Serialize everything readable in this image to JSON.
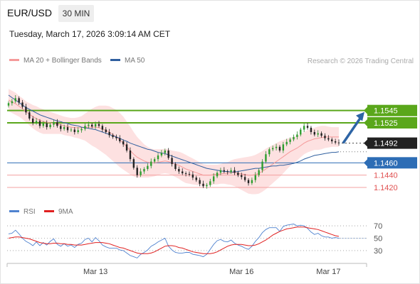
{
  "header": {
    "pair": "EUR/USD",
    "timeframe": "30 MIN",
    "datetime": "Tuesday, March 17, 2026 3:09:14 AM CET",
    "credit": "Research © 2026 Trading Central"
  },
  "colors": {
    "ma20": "#f59a9a",
    "ma50": "#2f5f9f",
    "resistance": "#5aa71b",
    "support": "#2d6db5",
    "support_light": "#f3a0a0",
    "arrow": "#2d64a5",
    "rsi": "#4f82cf",
    "rsi_ma": "#e02020"
  },
  "chart_data": [
    {
      "type": "candlestick",
      "title": "",
      "legend": [
        "MA 20 + Bollinger Bands",
        "MA 50"
      ],
      "x_ticks": [
        "Mar 13",
        "Mar 16",
        "Mar 17"
      ],
      "ylim": [
        1.1405,
        1.1615
      ],
      "levels": [
        {
          "label": "1.1545",
          "value": 1.1545,
          "kind": "resistance"
        },
        {
          "label": "1.1525",
          "value": 1.1525,
          "kind": "resistance"
        },
        {
          "label": "1.1492",
          "value": 1.1492,
          "kind": "last"
        },
        {
          "label": "1.1460",
          "value": 1.146,
          "kind": "support"
        },
        {
          "label": "1.1440",
          "value": 1.144,
          "kind": "support_light"
        },
        {
          "label": "1.1420",
          "value": 1.142,
          "kind": "support_light"
        }
      ],
      "close": [
        1.1557,
        1.156,
        1.1565,
        1.1558,
        1.1551,
        1.1542,
        1.1532,
        1.1525,
        1.1528,
        1.152,
        1.1524,
        1.1518,
        1.1522,
        1.1526,
        1.152,
        1.1515,
        1.1518,
        1.1513,
        1.1514,
        1.151,
        1.1513,
        1.1515,
        1.152,
        1.1522,
        1.1519,
        1.1523,
        1.152,
        1.1514,
        1.151,
        1.1505,
        1.1502,
        1.15,
        1.1495,
        1.149,
        1.148,
        1.1466,
        1.1452,
        1.144,
        1.1446,
        1.145,
        1.1455,
        1.1462,
        1.1466,
        1.1472,
        1.1476,
        1.148,
        1.1468,
        1.1458,
        1.145,
        1.1446,
        1.1443,
        1.1442,
        1.1441,
        1.1436,
        1.1432,
        1.1426,
        1.1422,
        1.1424,
        1.143,
        1.1438,
        1.1444,
        1.1448,
        1.1446,
        1.1445,
        1.1448,
        1.1444,
        1.144,
        1.1437,
        1.1432,
        1.1427,
        1.1432,
        1.144,
        1.1448,
        1.1462,
        1.1474,
        1.1482,
        1.1484,
        1.1486,
        1.148,
        1.149,
        1.1494,
        1.1498,
        1.1502,
        1.1506,
        1.1514,
        1.152,
        1.1517,
        1.151,
        1.1506,
        1.1508,
        1.1504,
        1.15,
        1.1498,
        1.1495,
        1.1493,
        1.1492
      ],
      "ma20": [
        1.1562,
        1.1559,
        1.1556,
        1.1552,
        1.1548,
        1.1543,
        1.1539,
        1.1535,
        1.1532,
        1.1529,
        1.1527,
        1.1526,
        1.1525,
        1.1524,
        1.1523,
        1.1522,
        1.152,
        1.1519,
        1.1518,
        1.1517,
        1.1517,
        1.1517,
        1.1518,
        1.1518,
        1.1518,
        1.1518,
        1.1517,
        1.1515,
        1.1513,
        1.151,
        1.1506,
        1.1502,
        1.1497,
        1.1492,
        1.1486,
        1.148,
        1.1474,
        1.1469,
        1.1466,
        1.1463,
        1.1461,
        1.146,
        1.146,
        1.1461,
        1.1462,
        1.1463,
        1.1462,
        1.146,
        1.1458,
        1.1456,
        1.1453,
        1.145,
        1.1448,
        1.1446,
        1.1444,
        1.1442,
        1.144,
        1.144,
        1.144,
        1.1441,
        1.1441,
        1.1442,
        1.1443,
        1.1443,
        1.1444,
        1.1444,
        1.1443,
        1.1442,
        1.1441,
        1.144,
        1.144,
        1.1441,
        1.1443,
        1.1446,
        1.145,
        1.1454,
        1.1458,
        1.1462,
        1.1466,
        1.147,
        1.1474,
        1.1478,
        1.1481,
        1.1484,
        1.1488,
        1.1492,
        1.1495,
        1.1497,
        1.1499,
        1.15,
        1.1501,
        1.1502,
        1.1502,
        1.1502,
        1.1502,
        1.1502
      ],
      "ma50": [
        1.157,
        1.1566,
        1.1562,
        1.1558,
        1.1554,
        1.155,
        1.1547,
        1.1544,
        1.1541,
        1.1538,
        1.1536,
        1.1534,
        1.1532,
        1.153,
        1.1528,
        1.1527,
        1.1525,
        1.1524,
        1.1522,
        1.1521,
        1.152,
        1.1518,
        1.1517,
        1.1516,
        1.1515,
        1.1514,
        1.1512,
        1.151,
        1.1508,
        1.1506,
        1.1504,
        1.1502,
        1.15,
        1.1497,
        1.1495,
        1.1492,
        1.149,
        1.1488,
        1.1486,
        1.1484,
        1.1482,
        1.1481,
        1.1479,
        1.1477,
        1.1476,
        1.1475,
        1.1473,
        1.1471,
        1.1469,
        1.1467,
        1.1465,
        1.1463,
        1.1461,
        1.1459,
        1.1457,
        1.1455,
        1.1453,
        1.1451,
        1.145,
        1.1449,
        1.1448,
        1.1447,
        1.1446,
        1.1446,
        1.1445,
        1.1445,
        1.1446,
        1.1447,
        1.1448,
        1.1449,
        1.145,
        1.1451,
        1.1451,
        1.1452,
        1.1453,
        1.1454,
        1.1455,
        1.1455,
        1.1456,
        1.1456,
        1.1457,
        1.1458,
        1.1459,
        1.1461,
        1.1463,
        1.1466,
        1.1468,
        1.147,
        1.1472,
        1.1473,
        1.1474,
        1.1475,
        1.1476,
        1.1477,
        1.1477,
        1.1478
      ],
      "bollinger_width": [
        0.0018,
        0.0018,
        0.0018,
        0.0017,
        0.0017,
        0.0017,
        0.0018,
        0.0019,
        0.002,
        0.002,
        0.002,
        0.0019,
        0.0018,
        0.0017,
        0.0016,
        0.0015,
        0.0015,
        0.0015,
        0.0015,
        0.0016,
        0.0017,
        0.0019,
        0.0022,
        0.0026,
        0.003,
        0.0033,
        0.0036,
        0.0038,
        0.004,
        0.0042,
        0.0043,
        0.0044,
        0.0044,
        0.0043,
        0.0041,
        0.0039,
        0.0036,
        0.0033,
        0.003,
        0.0027,
        0.0025,
        0.0023,
        0.0022,
        0.0021,
        0.002,
        0.002,
        0.002,
        0.002,
        0.0021,
        0.0022,
        0.0023,
        0.0023,
        0.0022,
        0.0021,
        0.002,
        0.0019,
        0.0018,
        0.0017,
        0.0017,
        0.0016,
        0.0016,
        0.0016,
        0.0017,
        0.0018,
        0.002,
        0.0022,
        0.0024,
        0.0026,
        0.0028,
        0.003,
        0.0031,
        0.0032,
        0.0033,
        0.0033,
        0.0033,
        0.0032,
        0.0031,
        0.003,
        0.0029,
        0.0027,
        0.0025,
        0.0023,
        0.0021,
        0.002,
        0.0019,
        0.0018,
        0.0018,
        0.0018,
        0.0018,
        0.0019,
        0.0019,
        0.0018,
        0.0017,
        0.0016,
        0.0016,
        0.0016
      ],
      "projection": {
        "from": 1.1492,
        "to": 1.1545
      }
    },
    {
      "type": "line",
      "legend": [
        "RSI",
        "9MA"
      ],
      "ylim": [
        15,
        85
      ],
      "y_ticks": [
        "70",
        "50",
        "30"
      ],
      "rsi": [
        57,
        58,
        63,
        57,
        50,
        45,
        42,
        38,
        44,
        38,
        43,
        39,
        45,
        49,
        40,
        37,
        41,
        37,
        39,
        35,
        40,
        42,
        48,
        50,
        44,
        51,
        46,
        39,
        36,
        34,
        34,
        34,
        31,
        30,
        26,
        22,
        20,
        18,
        24,
        27,
        31,
        37,
        40,
        44,
        47,
        50,
        37,
        31,
        27,
        26,
        26,
        27,
        27,
        24,
        23,
        22,
        20,
        24,
        32,
        40,
        46,
        48,
        45,
        44,
        47,
        42,
        39,
        37,
        34,
        32,
        37,
        45,
        51,
        59,
        64,
        67,
        67,
        67,
        61,
        69,
        71,
        72,
        73,
        70,
        71,
        70,
        66,
        60,
        56,
        58,
        54,
        52,
        52,
        50,
        51,
        50
      ],
      "rsi_ma": [
        50,
        51,
        52,
        52,
        51,
        50,
        49,
        47,
        45,
        43,
        42,
        41,
        41,
        42,
        42,
        41,
        41,
        40,
        40,
        39,
        39,
        39,
        40,
        41,
        42,
        43,
        43,
        43,
        42,
        41,
        39,
        37,
        35,
        34,
        32,
        30,
        28,
        26,
        25,
        25,
        25,
        26,
        28,
        31,
        34,
        37,
        38,
        38,
        37,
        35,
        34,
        32,
        30,
        28,
        27,
        26,
        25,
        25,
        25,
        26,
        28,
        31,
        34,
        37,
        39,
        40,
        40,
        40,
        39,
        38,
        38,
        39,
        41,
        44,
        47,
        51,
        55,
        58,
        61,
        63,
        65,
        66,
        67,
        68,
        68,
        68,
        67,
        66,
        65,
        64,
        62,
        60,
        58,
        56,
        54,
        53
      ]
    }
  ]
}
